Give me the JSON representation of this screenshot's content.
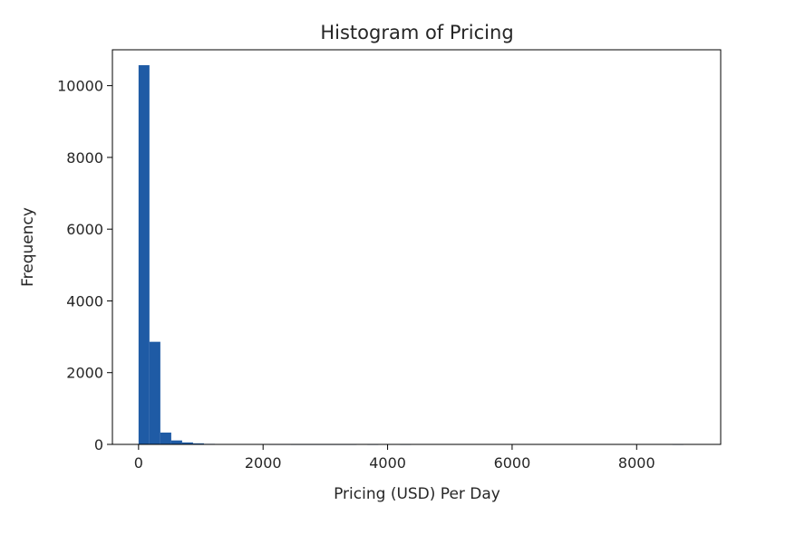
{
  "chart_data": {
    "type": "bar",
    "title": "Histogram of Pricing",
    "xlabel": "Pricing (USD) Per Day",
    "ylabel": "Frequency",
    "xlim": [
      -420,
      9350
    ],
    "ylim": [
      0,
      11000
    ],
    "xticks": [
      0,
      2000,
      4000,
      6000,
      8000
    ],
    "yticks": [
      0,
      2000,
      4000,
      6000,
      8000,
      10000
    ],
    "bin_edges": [
      0,
      175,
      350,
      525,
      700,
      875,
      1050,
      1225,
      1400,
      1575,
      1750,
      1925,
      2100,
      2275,
      2450,
      2625,
      2800,
      2975,
      3150,
      3325,
      3500,
      3675,
      3850,
      4025,
      4200,
      4375,
      4550,
      4725,
      4900,
      5075,
      5250,
      5425,
      5600,
      5775,
      5950,
      6125,
      6300,
      6475,
      6650,
      6825,
      7000,
      7175,
      7350,
      7525,
      7700,
      7875,
      8050,
      8225,
      8400,
      8575,
      8750
    ],
    "values": [
      10570,
      2860,
      330,
      110,
      55,
      30,
      15,
      10,
      6,
      5,
      4,
      3,
      2,
      2,
      1,
      1,
      1,
      1,
      1,
      1,
      0,
      1,
      0,
      0,
      1,
      0,
      0,
      0,
      0,
      0,
      0,
      0,
      0,
      0,
      0,
      0,
      0,
      0,
      0,
      0,
      0,
      0,
      0,
      0,
      0,
      0,
      0,
      0,
      0,
      1
    ],
    "bar_color": "#1f5ba5",
    "grid": false
  }
}
